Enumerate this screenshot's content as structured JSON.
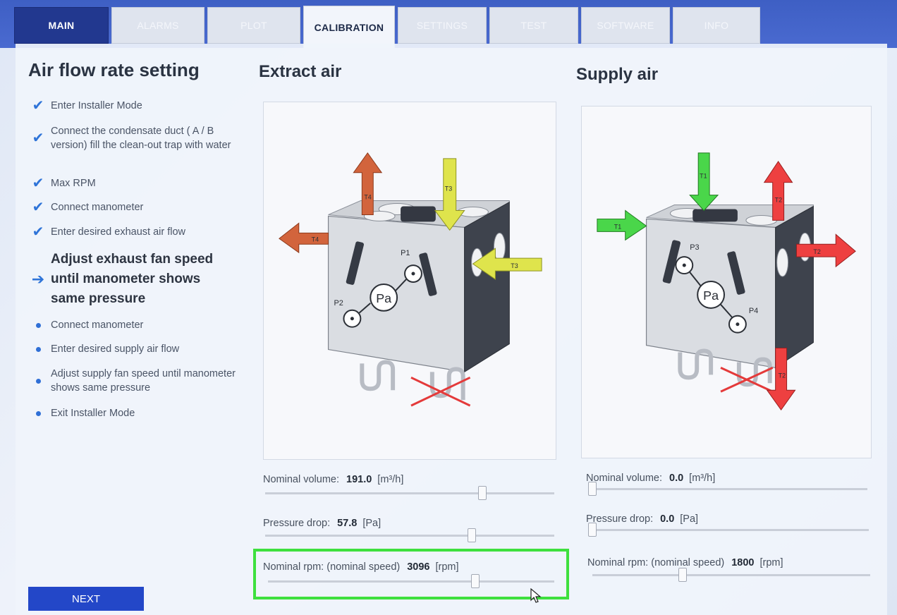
{
  "tabs": [
    {
      "label": "MAIN",
      "state": "main"
    },
    {
      "label": "ALARMS",
      "state": "dim"
    },
    {
      "label": "PLOT",
      "state": "dim"
    },
    {
      "label": "CALIBRATION",
      "state": "active"
    },
    {
      "label": "SETTINGS",
      "state": "dim"
    },
    {
      "label": "TEST",
      "state": "dim"
    },
    {
      "label": "SOFTWARE",
      "state": "dim"
    },
    {
      "label": "INFO",
      "state": "dim"
    }
  ],
  "page": {
    "title": "Air flow rate setting",
    "extract_title": "Extract air",
    "supply_title": "Supply air"
  },
  "steps": [
    {
      "text": "Enter Installer Mode",
      "status": "done"
    },
    {
      "text": "Connect the condensate duct  ( A / B version)  fill the clean-out trap with water",
      "status": "done"
    },
    {
      "text": "Max RPM",
      "status": "done"
    },
    {
      "text": "Connect manometer",
      "status": "done"
    },
    {
      "text": "Enter desired exhaust air flow",
      "status": "done"
    },
    {
      "text": "Adjust exhaust fan speed until manometer shows same pressure",
      "status": "current"
    },
    {
      "text": "Connect manometer",
      "status": "pending"
    },
    {
      "text": "Enter desired supply air flow",
      "status": "pending"
    },
    {
      "text": "Adjust supply fan speed until manometer shows same pressure",
      "status": "pending"
    },
    {
      "text": "Exit Installer Mode",
      "status": "pending"
    }
  ],
  "diagram_labels": {
    "extract": {
      "p_top": "P1",
      "p_bottom": "P2",
      "gauge": "Pa",
      "t_out": "T4",
      "t_in": "T3",
      "t_left": "T4",
      "t_right": "T3"
    },
    "supply": {
      "p_top": "P3",
      "p_bottom": "P4",
      "gauge": "Pa",
      "t_in": "T1",
      "t_out": "T2",
      "t_left": "T1",
      "t_right": "T2",
      "t_bottom": "T2"
    }
  },
  "extract": {
    "volume": {
      "label": "Nominal volume:",
      "value": "191.0",
      "unit": "[m³/h]",
      "level": 0.76
    },
    "pressure": {
      "label": "Pressure drop:",
      "value": "57.8",
      "unit": "[Pa]",
      "level": 0.72
    },
    "rpm": {
      "label": "Nominal rpm:  (nominal speed)",
      "value": "3096",
      "unit": "[rpm]",
      "level": 0.73
    }
  },
  "supply": {
    "volume": {
      "label": "Nominal volume:",
      "value": "0.0",
      "unit": "[m³/h]",
      "level": 0.0
    },
    "pressure": {
      "label": "Pressure drop:",
      "value": "0.0",
      "unit": "[Pa]",
      "level": 0.0
    },
    "rpm": {
      "label": "Nominal rpm:  (nominal speed)",
      "value": "1800",
      "unit": "[rpm]",
      "level": 0.32
    }
  },
  "buttons": {
    "next": "NEXT"
  },
  "colors": {
    "accent": "#2f74d8",
    "highlight": "#3ee03e",
    "warm_arrow": "#d2643c",
    "cool_arrow": "#dfe44c",
    "supply_in": "#4ad64a",
    "supply_out": "#ee4040"
  }
}
